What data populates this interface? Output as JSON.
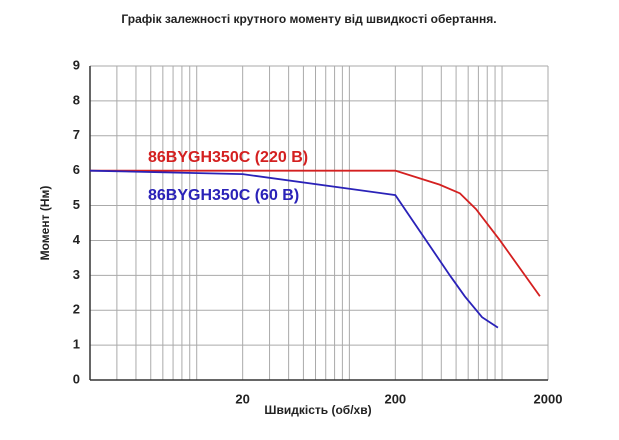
{
  "chart_data": {
    "type": "line",
    "title": "Графік залежності крутного моменту від швидкості обертання.",
    "x_label": "Швидкість (об/хв)",
    "y_label": "Момент (Нм)",
    "log_x": true,
    "grid": true,
    "xlim": [
      2,
      2000
    ],
    "xticks": [
      20,
      200,
      2000
    ],
    "x_minor_ticks": [
      3,
      4,
      5,
      6,
      7,
      8,
      9,
      10,
      30,
      40,
      50,
      60,
      70,
      80,
      90,
      100,
      300,
      400,
      500,
      600,
      700,
      800,
      900,
      1000
    ],
    "ylim": [
      0,
      9
    ],
    "yticks": [
      0,
      1,
      2,
      3,
      4,
      5,
      6,
      7,
      8,
      9
    ],
    "series": [
      {
        "name": "86BYGH350C (220 В)",
        "color": "#d42020",
        "x": [
          2,
          200,
          390,
          530,
          675,
          970,
          1770
        ],
        "values": [
          6.0,
          6.0,
          5.6,
          5.35,
          4.9,
          4.0,
          2.4
        ]
      },
      {
        "name": "86BYGH350C (60 В)",
        "color": "#2a22b8",
        "x": [
          2,
          20,
          200,
          455,
          570,
          740,
          940
        ],
        "values": [
          6.0,
          5.9,
          5.3,
          3.0,
          2.4,
          1.8,
          1.5
        ]
      }
    ]
  }
}
